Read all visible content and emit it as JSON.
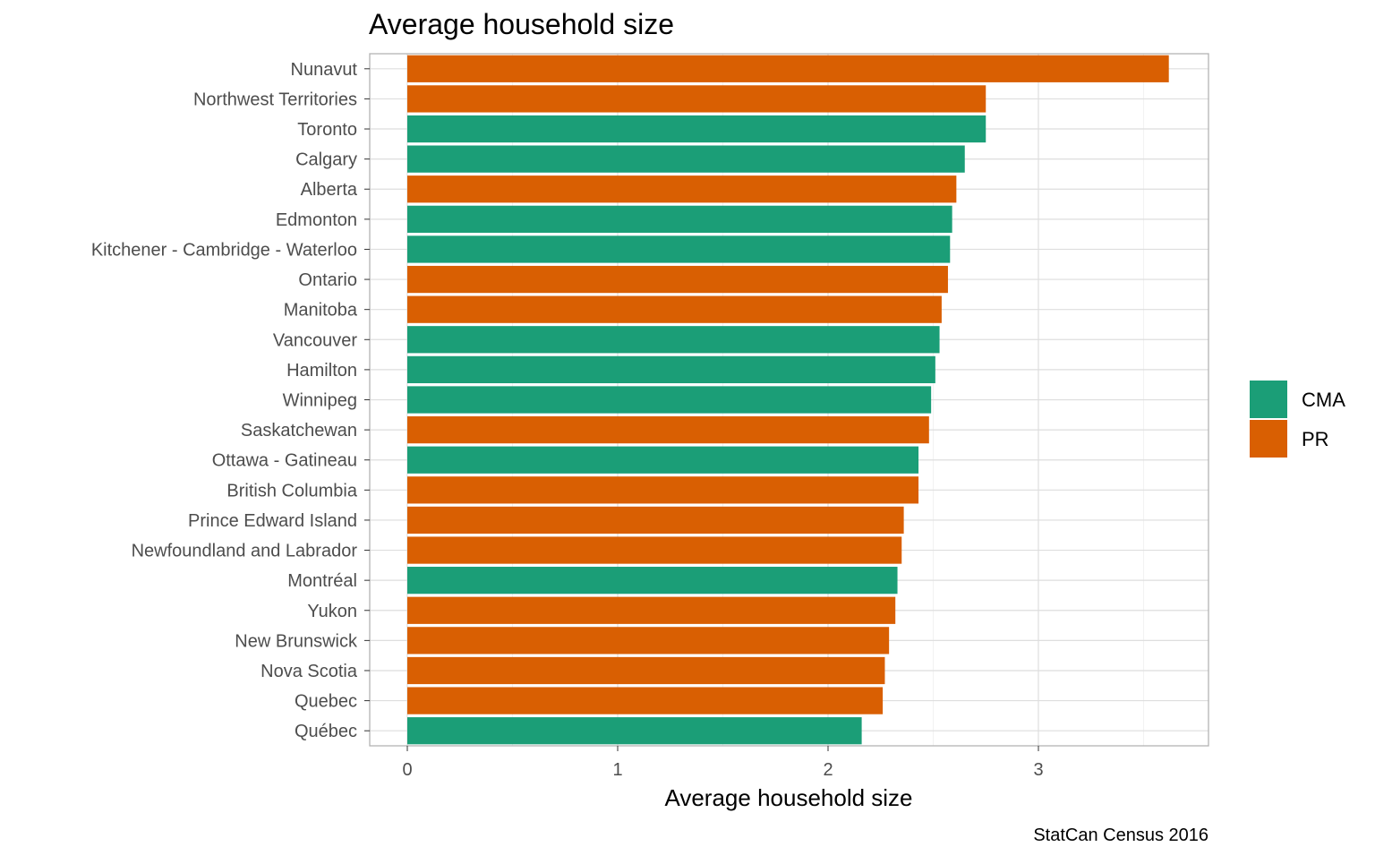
{
  "chart_data": {
    "type": "bar",
    "orientation": "horizontal",
    "title": "Average household size",
    "xlabel": "Average household size",
    "ylabel": "",
    "caption": "StatCan Census 2016",
    "xlim": [
      0,
      3.8
    ],
    "x_ticks": [
      0,
      1,
      2,
      3
    ],
    "x_tick_labels": [
      "0",
      "1",
      "2",
      "3"
    ],
    "grid": true,
    "legend_position": "right",
    "legend": [
      {
        "key": "CMA",
        "label": "CMA",
        "color": "#1b9e77"
      },
      {
        "key": "PR",
        "label": "PR",
        "color": "#d95f02"
      }
    ],
    "categories": [
      "Nunavut",
      "Northwest Territories",
      "Toronto",
      "Calgary",
      "Alberta",
      "Edmonton",
      "Kitchener - Cambridge - Waterloo",
      "Ontario",
      "Manitoba",
      "Vancouver",
      "Hamilton",
      "Winnipeg",
      "Saskatchewan",
      "Ottawa - Gatineau",
      "British Columbia",
      "Prince Edward Island",
      "Newfoundland and Labrador",
      "Montréal",
      "Yukon",
      "New Brunswick",
      "Nova Scotia",
      "Quebec",
      "Québec"
    ],
    "values": [
      3.62,
      2.75,
      2.75,
      2.65,
      2.61,
      2.59,
      2.58,
      2.57,
      2.54,
      2.53,
      2.51,
      2.49,
      2.48,
      2.43,
      2.43,
      2.36,
      2.35,
      2.33,
      2.32,
      2.29,
      2.27,
      2.26,
      2.16
    ],
    "groups": [
      "PR",
      "PR",
      "CMA",
      "CMA",
      "PR",
      "CMA",
      "CMA",
      "PR",
      "PR",
      "CMA",
      "CMA",
      "CMA",
      "PR",
      "CMA",
      "PR",
      "PR",
      "PR",
      "CMA",
      "PR",
      "PR",
      "PR",
      "PR",
      "CMA"
    ]
  }
}
